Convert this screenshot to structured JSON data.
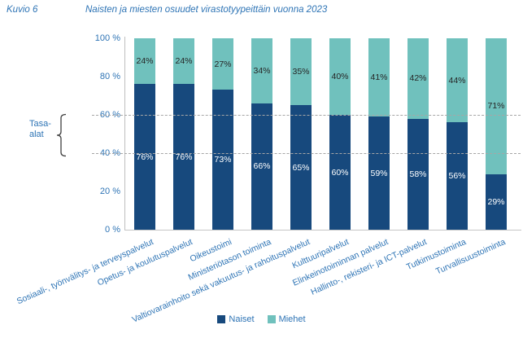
{
  "header": {
    "figure_label": "Kuvio 6",
    "title": "Naisten ja miesten osuudet virastotyypeittäin vuonna 2023"
  },
  "annotation": {
    "line1": "Tasa-",
    "line2": "alat",
    "range_pct": [
      40,
      60
    ]
  },
  "colors": {
    "naiset": "#17497D",
    "miehet": "#70C1BD",
    "axis_text": "#2E74B5",
    "segment_label_dark": "#262626",
    "segment_label_light": "#FFFFFF",
    "gridline": "#A6A6A6",
    "axis_line": "#BFBFBF"
  },
  "chart_data": {
    "type": "bar",
    "stacked": true,
    "title": "Naisten ja miesten osuudet virastotyypeittäin vuonna 2023",
    "xlabel": "",
    "ylabel": "",
    "ylim": [
      0,
      100
    ],
    "y_ticks": [
      0,
      20,
      40,
      60,
      80,
      100
    ],
    "y_tick_suffix": " %",
    "dashed_gridlines": [
      40,
      60
    ],
    "grid": "dashed-at-40-and-60-only",
    "legend_position": "bottom",
    "categories": [
      "Sosiaali-, työnvälitys- ja terveyspalvelut",
      "Opetus- ja koulutuspalvelut",
      "Oikeustoimi",
      "Ministeriötason toiminta",
      "Valtiovarainhoito sekä vakuutus- ja rahoituspalvelut",
      "Kulttuuripalvelut",
      "Elinkeinotoiminnan palvelut",
      "Hallinto-, rekisteri- ja ICT-palvelut",
      "Tutkimustoiminta",
      "Turvallisuustoiminta"
    ],
    "series": [
      {
        "name": "Naiset",
        "color": "#17497D",
        "values": [
          76,
          76,
          73,
          66,
          65,
          60,
          59,
          58,
          56,
          29
        ]
      },
      {
        "name": "Miehet",
        "color": "#70C1BD",
        "values": [
          24,
          24,
          27,
          34,
          35,
          40,
          41,
          42,
          44,
          71
        ]
      }
    ],
    "data_label_suffix": "%"
  }
}
